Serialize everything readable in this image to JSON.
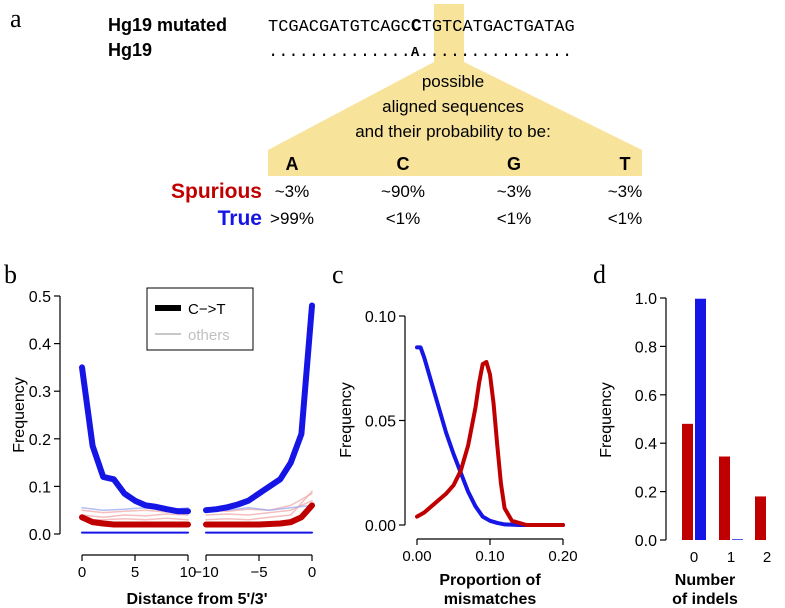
{
  "colors": {
    "spurious": "#c00000",
    "true": "#1515e6",
    "highlight": "#f7e39a",
    "others_blue": "#9aa8f0",
    "others_red": "#f0a8a8"
  },
  "panel_a": {
    "label": "a",
    "mutated_label": "Hg19 mutated",
    "ref_label": "Hg19",
    "mutated_seq_left": "TCGACGATGTCAGC",
    "mutated_base": "C",
    "mutated_seq_right": "TGTCATGACTGATAG",
    "ref_dots_left": "..............",
    "ref_base": "A",
    "ref_dots_right": "...............",
    "caption_lines": [
      "possible",
      "aligned sequences",
      "and their probability to be:"
    ],
    "bases": [
      "A",
      "C",
      "G",
      "T"
    ],
    "rows": [
      {
        "name": "Spurious",
        "values": [
          "~3%",
          "~90%",
          "~3%",
          "~3%"
        ]
      },
      {
        "name": "True",
        "values": [
          ">99%",
          "<1%",
          "<1%",
          "<1%"
        ]
      }
    ]
  },
  "panel_b": {
    "label": "b"
  },
  "panel_c": {
    "label": "c"
  },
  "panel_d": {
    "label": "d"
  },
  "chart_data": [
    {
      "id": "b",
      "type": "line",
      "ylabel": "Frequency",
      "xlabel": "Distance from 5'/3'",
      "ylim": [
        0,
        0.5
      ],
      "yticks": [
        0.0,
        0.1,
        0.2,
        0.3,
        0.4,
        0.5
      ],
      "ytick_labels": [
        "0.0",
        "0.1",
        "0.2",
        "0.3",
        "0.4",
        "0.5"
      ],
      "left_xticks": [
        0,
        5,
        10
      ],
      "left_xtick_labels": [
        "0",
        "5",
        "10"
      ],
      "right_xticks": [
        -10,
        -5,
        0
      ],
      "right_xtick_labels": [
        "−10",
        "−5",
        "0"
      ],
      "legend": [
        {
          "label": "C−>T",
          "style": "thick-black"
        },
        {
          "label": "others",
          "style": "thin-grey"
        }
      ],
      "series": [
        {
          "name": "C->T true 5'",
          "color": "true",
          "width": 6,
          "side": "left",
          "x": [
            0,
            1,
            2,
            3,
            4,
            5,
            6,
            7,
            8,
            9,
            10
          ],
          "y": [
            0.35,
            0.185,
            0.12,
            0.115,
            0.085,
            0.07,
            0.06,
            0.057,
            0.052,
            0.048,
            0.048
          ]
        },
        {
          "name": "C->T true 3'",
          "color": "true",
          "width": 6,
          "side": "right",
          "x": [
            -10,
            -9,
            -8,
            -7,
            -6,
            -5,
            -4,
            -3,
            -2,
            -1,
            0
          ],
          "y": [
            0.05,
            0.052,
            0.056,
            0.062,
            0.07,
            0.085,
            0.1,
            0.115,
            0.15,
            0.21,
            0.48
          ]
        },
        {
          "name": "C->T spurious 5'",
          "color": "spurious",
          "width": 6,
          "side": "left",
          "x": [
            0,
            1,
            2,
            3,
            4,
            5,
            6,
            7,
            8,
            9,
            10
          ],
          "y": [
            0.035,
            0.025,
            0.022,
            0.02,
            0.02,
            0.02,
            0.02,
            0.02,
            0.02,
            0.02,
            0.02
          ]
        },
        {
          "name": "C->T spurious 3'",
          "color": "spurious",
          "width": 6,
          "side": "right",
          "x": [
            -10,
            -9,
            -8,
            -7,
            -6,
            -5,
            -4,
            -3,
            -2,
            -1,
            0
          ],
          "y": [
            0.02,
            0.02,
            0.02,
            0.02,
            0.02,
            0.02,
            0.021,
            0.022,
            0.025,
            0.035,
            0.06
          ]
        },
        {
          "name": "others true baseline 5'",
          "color": "true",
          "width": 2,
          "side": "left",
          "x": [
            0,
            10
          ],
          "y": [
            0.003,
            0.003
          ]
        },
        {
          "name": "others true baseline 3'",
          "color": "true",
          "width": 2,
          "side": "right",
          "x": [
            -10,
            0
          ],
          "y": [
            0.003,
            0.003
          ]
        },
        {
          "name": "others spurious a 5'",
          "color": "others_red",
          "width": 1.5,
          "side": "left",
          "x": [
            0,
            2,
            4,
            6,
            8,
            10
          ],
          "y": [
            0.04,
            0.035,
            0.04,
            0.038,
            0.042,
            0.04
          ]
        },
        {
          "name": "others spurious a 3'",
          "color": "others_red",
          "width": 1.5,
          "side": "right",
          "x": [
            -10,
            -8,
            -6,
            -4,
            -2,
            0
          ],
          "y": [
            0.04,
            0.042,
            0.04,
            0.045,
            0.05,
            0.07
          ]
        },
        {
          "name": "others spurious b 5'",
          "color": "others_red",
          "width": 1.5,
          "side": "left",
          "x": [
            0,
            2,
            4,
            6,
            8,
            10
          ],
          "y": [
            0.05,
            0.045,
            0.048,
            0.05,
            0.046,
            0.05
          ]
        },
        {
          "name": "others spurious b 3'",
          "color": "others_red",
          "width": 1.5,
          "side": "right",
          "x": [
            -10,
            -8,
            -6,
            -4,
            -2,
            0
          ],
          "y": [
            0.05,
            0.048,
            0.052,
            0.05,
            0.06,
            0.085
          ]
        },
        {
          "name": "others spurious c 5'",
          "color": "others_red",
          "width": 1.5,
          "side": "left",
          "x": [
            0,
            2,
            4,
            6,
            8,
            10
          ],
          "y": [
            0.03,
            0.03,
            0.032,
            0.03,
            0.033,
            0.03
          ]
        },
        {
          "name": "others spurious c 3'",
          "color": "others_red",
          "width": 1.5,
          "side": "right",
          "x": [
            -10,
            -8,
            -6,
            -4,
            -2,
            0
          ],
          "y": [
            0.03,
            0.032,
            0.03,
            0.035,
            0.04,
            0.09
          ]
        },
        {
          "name": "others true a 5'",
          "color": "others_blue",
          "width": 1.5,
          "side": "left",
          "x": [
            0,
            2,
            4,
            6,
            8,
            10
          ],
          "y": [
            0.055,
            0.05,
            0.052,
            0.055,
            0.05,
            0.055
          ]
        },
        {
          "name": "others true a 3'",
          "color": "others_blue",
          "width": 1.5,
          "side": "right",
          "x": [
            -10,
            -8,
            -6,
            -4,
            -2,
            0
          ],
          "y": [
            0.055,
            0.05,
            0.055,
            0.05,
            0.055,
            0.06
          ]
        }
      ]
    },
    {
      "id": "c",
      "type": "line",
      "ylabel": "Frequency",
      "xlabel_lines": [
        "Proportion of",
        "mismatches"
      ],
      "xlim": [
        0,
        0.2
      ],
      "ylim": [
        0,
        0.1
      ],
      "xticks": [
        0.0,
        0.1,
        0.2
      ],
      "xtick_labels": [
        "0.00",
        "0.10",
        "0.20"
      ],
      "yticks": [
        0.0,
        0.05,
        0.1
      ],
      "ytick_labels": [
        "0.00",
        "0.05",
        "0.10"
      ],
      "series": [
        {
          "name": "True",
          "color": "true",
          "x": [
            0.0,
            0.005,
            0.01,
            0.02,
            0.03,
            0.04,
            0.05,
            0.06,
            0.07,
            0.08,
            0.09,
            0.1,
            0.11,
            0.12,
            0.14,
            0.17,
            0.2
          ],
          "y": [
            0.085,
            0.085,
            0.08,
            0.068,
            0.056,
            0.044,
            0.034,
            0.025,
            0.016,
            0.009,
            0.004,
            0.002,
            0.001,
            0.0003,
            0.0,
            0.0,
            0.0
          ]
        },
        {
          "name": "Spurious",
          "color": "spurious",
          "x": [
            0.0,
            0.01,
            0.02,
            0.03,
            0.04,
            0.05,
            0.06,
            0.07,
            0.08,
            0.085,
            0.09,
            0.095,
            0.1,
            0.105,
            0.11,
            0.115,
            0.12,
            0.13,
            0.15,
            0.2
          ],
          "y": [
            0.004,
            0.006,
            0.009,
            0.012,
            0.015,
            0.019,
            0.026,
            0.038,
            0.056,
            0.068,
            0.077,
            0.078,
            0.072,
            0.058,
            0.038,
            0.02,
            0.008,
            0.002,
            0.0,
            0.0
          ]
        }
      ]
    },
    {
      "id": "d",
      "type": "bar",
      "ylabel": "Frequency",
      "xlabel_lines": [
        "Number",
        "of indels"
      ],
      "categories": [
        "0",
        "1",
        "2"
      ],
      "ylim": [
        0,
        1.0
      ],
      "yticks": [
        0.0,
        0.2,
        0.4,
        0.6,
        0.8,
        1.0
      ],
      "ytick_labels": [
        "0.0",
        "0.2",
        "0.4",
        "0.6",
        "0.8",
        "1.0"
      ],
      "series": [
        {
          "name": "Spurious",
          "color": "spurious",
          "values": [
            0.48,
            0.345,
            0.18
          ]
        },
        {
          "name": "True",
          "color": "true",
          "values": [
            0.997,
            0.003,
            0.0
          ]
        }
      ]
    }
  ]
}
